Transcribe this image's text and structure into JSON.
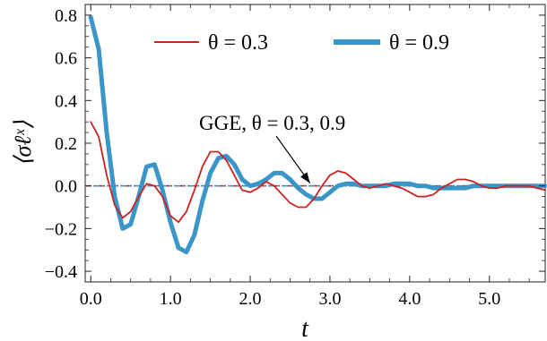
{
  "chart_data": {
    "type": "line",
    "xlabel": "t",
    "ylabel": "⟨σℓˣ⟩",
    "xlim": [
      -0.07,
      5.7
    ],
    "ylim": [
      -0.45,
      0.85
    ],
    "xticks": [
      0.0,
      1.0,
      2.0,
      3.0,
      4.0,
      5.0
    ],
    "xtick_labels": [
      "0.0",
      "1.0",
      "2.0",
      "3.0",
      "4.0",
      "5.0"
    ],
    "yticks": [
      -0.4,
      -0.2,
      0.0,
      0.2,
      0.4,
      0.6,
      0.8
    ],
    "ytick_labels": [
      "−0.4",
      "−0.2",
      "0.0",
      "0.2",
      "0.4",
      "0.6",
      "0.8"
    ],
    "grid": false,
    "legend_position": "top-center",
    "series": [
      {
        "name": "θ = 0.3",
        "color": "#cc2222",
        "line_style": "solid",
        "x": [
          0.0,
          0.1,
          0.2,
          0.3,
          0.4,
          0.5,
          0.6,
          0.7,
          0.8,
          0.9,
          1.0,
          1.1,
          1.2,
          1.3,
          1.4,
          1.5,
          1.6,
          1.7,
          1.8,
          1.9,
          2.0,
          2.1,
          2.2,
          2.3,
          2.4,
          2.5,
          2.6,
          2.7,
          2.8,
          2.9,
          3.0,
          3.1,
          3.2,
          3.3,
          3.4,
          3.5,
          3.6,
          3.7,
          3.8,
          3.9,
          4.0,
          4.1,
          4.2,
          4.3,
          4.4,
          4.5,
          4.6,
          4.7,
          4.8,
          4.9,
          5.0,
          5.1,
          5.2,
          5.3,
          5.4,
          5.5,
          5.6,
          5.7
        ],
        "y": [
          0.3,
          0.23,
          0.05,
          -0.09,
          -0.15,
          -0.12,
          -0.05,
          0.01,
          0.0,
          -0.05,
          -0.14,
          -0.17,
          -0.12,
          -0.02,
          0.09,
          0.16,
          0.16,
          0.12,
          0.05,
          -0.02,
          -0.03,
          -0.01,
          0.02,
          0.0,
          -0.04,
          -0.08,
          -0.1,
          -0.1,
          -0.06,
          0.0,
          0.05,
          0.07,
          0.06,
          0.03,
          0.0,
          -0.01,
          0.0,
          0.01,
          0.0,
          -0.01,
          -0.03,
          -0.05,
          -0.05,
          -0.04,
          -0.01,
          0.01,
          0.03,
          0.03,
          0.02,
          0.0,
          -0.01,
          -0.01,
          0.0,
          0.0,
          0.0,
          0.0,
          -0.01,
          -0.02
        ]
      },
      {
        "name": "θ = 0.9",
        "color": "#3a96c8",
        "line_style": "solid",
        "x": [
          0.0,
          0.1,
          0.2,
          0.3,
          0.4,
          0.5,
          0.6,
          0.7,
          0.8,
          0.9,
          1.0,
          1.1,
          1.2,
          1.3,
          1.4,
          1.5,
          1.6,
          1.7,
          1.8,
          1.9,
          2.0,
          2.1,
          2.2,
          2.3,
          2.4,
          2.5,
          2.6,
          2.7,
          2.8,
          2.9,
          3.0,
          3.1,
          3.2,
          3.3,
          3.4,
          3.5,
          3.6,
          3.7,
          3.8,
          3.9,
          4.0,
          4.1,
          4.2,
          4.3,
          4.4,
          4.5,
          4.6,
          4.7,
          4.8,
          4.9,
          5.0,
          5.1,
          5.2,
          5.3,
          5.4,
          5.5,
          5.6,
          5.7
        ],
        "y": [
          0.79,
          0.64,
          0.25,
          -0.05,
          -0.2,
          -0.18,
          -0.05,
          0.09,
          0.1,
          -0.02,
          -0.17,
          -0.29,
          -0.31,
          -0.23,
          -0.07,
          0.06,
          0.13,
          0.14,
          0.1,
          0.03,
          0.0,
          0.01,
          0.03,
          0.06,
          0.06,
          0.03,
          -0.01,
          -0.04,
          -0.06,
          -0.06,
          -0.03,
          0.0,
          0.01,
          0.01,
          0.0,
          0.0,
          0.0,
          0.0,
          0.01,
          0.01,
          0.01,
          0.0,
          0.0,
          -0.01,
          -0.01,
          -0.01,
          -0.01,
          -0.01,
          0.0,
          0.0,
          0.0,
          0.0,
          0.0,
          0.0,
          0.0,
          0.0,
          0.0,
          0.0
        ]
      }
    ],
    "reference_lines": [
      {
        "name": "GGE θ = 0.3",
        "y": 0.0,
        "color": "#cc2222",
        "line_style": "dash-dot"
      },
      {
        "name": "GGE θ = 0.9",
        "y": 0.0,
        "color": "#3a96c8",
        "line_style": "dash-dot"
      }
    ],
    "annotation": {
      "text": "GGE, θ = 0.3, 0.9",
      "arrow_to_x": 2.75,
      "arrow_to_y": 0.0
    },
    "legend": {
      "entries": [
        {
          "label": "θ = 0.3",
          "color": "#cc2222"
        },
        {
          "label": "θ = 0.9",
          "color": "#3a96c8"
        }
      ]
    }
  }
}
